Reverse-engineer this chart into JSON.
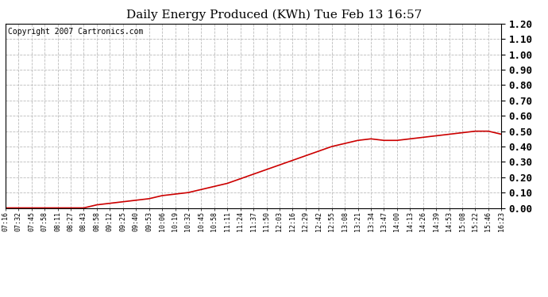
{
  "title": "Daily Energy Produced (KWh) Tue Feb 13 16:57",
  "copyright_text": "Copyright 2007 Cartronics.com",
  "x_labels": [
    "07:16",
    "07:32",
    "07:45",
    "07:58",
    "08:11",
    "08:27",
    "08:43",
    "08:58",
    "09:12",
    "09:25",
    "09:40",
    "09:53",
    "10:06",
    "10:19",
    "10:32",
    "10:45",
    "10:58",
    "11:11",
    "11:24",
    "11:37",
    "11:50",
    "12:03",
    "12:16",
    "12:29",
    "12:42",
    "12:55",
    "13:08",
    "13:21",
    "13:34",
    "13:47",
    "14:00",
    "14:13",
    "14:26",
    "14:39",
    "14:53",
    "15:08",
    "15:22",
    "15:46",
    "16:23"
  ],
  "y_values": [
    0.0,
    0.0,
    0.0,
    0.0,
    0.0,
    0.0,
    0.0,
    0.02,
    0.03,
    0.04,
    0.05,
    0.06,
    0.08,
    0.09,
    0.1,
    0.12,
    0.14,
    0.16,
    0.19,
    0.22,
    0.25,
    0.28,
    0.31,
    0.34,
    0.37,
    0.4,
    0.42,
    0.44,
    0.45,
    0.44,
    0.44,
    0.45,
    0.46,
    0.47,
    0.48,
    0.49,
    0.5,
    0.5,
    0.48
  ],
  "line_color": "#cc0000",
  "background_color": "#ffffff",
  "plot_bg_color": "#ffffff",
  "grid_color": "#bbbbbb",
  "y_min": 0.0,
  "y_max": 1.2,
  "y_tick_step": 0.1,
  "title_fontsize": 11,
  "copyright_fontsize": 7,
  "ytick_fontsize": 9,
  "xtick_fontsize": 6
}
